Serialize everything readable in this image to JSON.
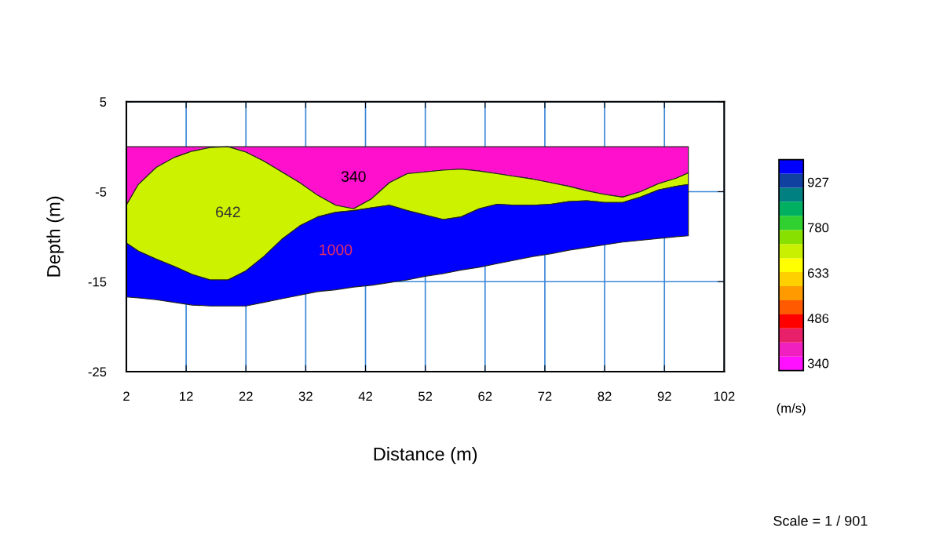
{
  "chart_data": {
    "type": "area",
    "stacked": true,
    "xlabel": "Distance (m)",
    "ylabel": "Depth (m)",
    "clabel": "(m/s)",
    "x": [
      2,
      4,
      7,
      10,
      13,
      16,
      19,
      22,
      25,
      28,
      31,
      34,
      37,
      40,
      43,
      46,
      49,
      52,
      55,
      58,
      61,
      64,
      67,
      70,
      73,
      76,
      79,
      82,
      85,
      88,
      91,
      94,
      96
    ],
    "series": [
      {
        "name": "340",
        "color": "#ff10cc",
        "values": [
          -6.5,
          -4.2,
          -2.3,
          -1.2,
          -0.5,
          -0.1,
          0,
          -0.6,
          -1.6,
          -2.8,
          -4.0,
          -5.4,
          -6.5,
          -6.9,
          -5.8,
          -4.0,
          -3.0,
          -2.8,
          -2.6,
          -2.5,
          -2.7,
          -3.0,
          -3.3,
          -3.6,
          -4.0,
          -4.4,
          -4.9,
          -5.3,
          -5.6,
          -5.0,
          -4.1,
          -3.5,
          -2.9
        ]
      },
      {
        "name": "642",
        "color": "#ccf200",
        "values": [
          -4.2,
          -7.4,
          -10.2,
          -12.1,
          -13.7,
          -14.7,
          -14.8,
          -13.2,
          -10.6,
          -7.5,
          -4.8,
          -2.4,
          -0.8,
          -0.2,
          -1.0,
          -2.5,
          -4.1,
          -4.8,
          -5.5,
          -5.3,
          -4.2,
          -3.4,
          -3.2,
          -2.9,
          -2.4,
          -1.7,
          -1.1,
          -0.9,
          -0.6,
          -0.6,
          -0.7,
          -0.9,
          -1.3
        ]
      },
      {
        "name": "1000",
        "color": "#0000ff",
        "values": [
          -6.0,
          -5.2,
          -4.5,
          -4.0,
          -3.4,
          -2.9,
          -2.9,
          -3.9,
          -5.1,
          -6.6,
          -7.7,
          -8.3,
          -8.6,
          -8.5,
          -8.6,
          -8.6,
          -7.7,
          -6.8,
          -6.0,
          -5.9,
          -6.5,
          -6.6,
          -6.1,
          -5.7,
          -5.5,
          -5.4,
          -5.2,
          -4.7,
          -4.4,
          -4.8,
          -5.4,
          -5.6,
          -5.7
        ]
      }
    ],
    "xlim": [
      2,
      102
    ],
    "ylim": [
      -25,
      5
    ],
    "xticks": [
      2,
      12,
      22,
      32,
      42,
      52,
      62,
      72,
      82,
      92,
      102
    ],
    "yticks": [
      5,
      -5,
      -15,
      -25
    ],
    "grid": true,
    "clim": [
      316,
      1000
    ],
    "cticks": [
      340,
      486,
      633,
      780,
      927
    ],
    "annotations": [
      "Scale = 1 / 901"
    ]
  }
}
